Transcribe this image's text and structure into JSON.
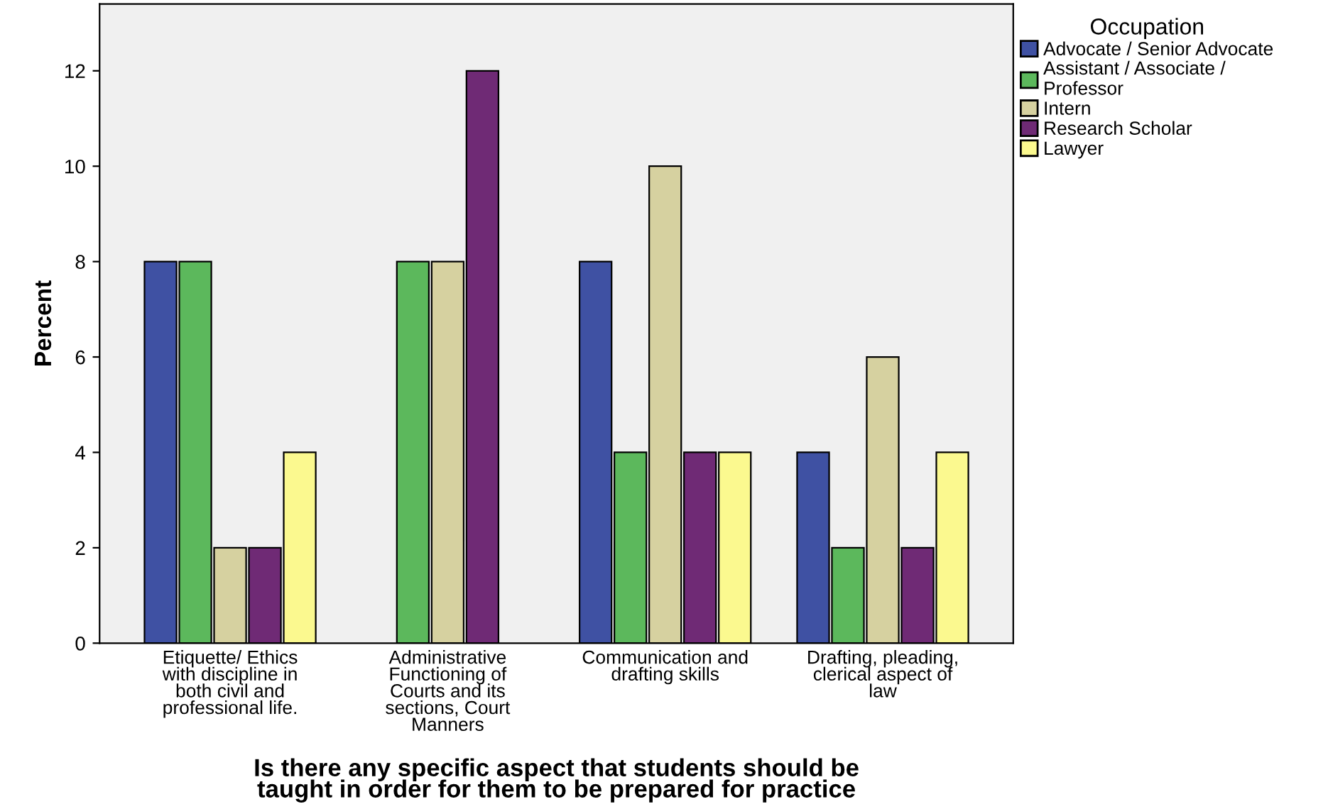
{
  "chart_data": {
    "type": "bar",
    "xlabel": "Is there any specific aspect that students should be\ntaught in order for them to be prepared for practice",
    "ylabel": "Percent",
    "legend_title": "Occupation",
    "categories": [
      "Etiquette/ Ethics\nwith discipline in\nboth civil and\nprofessional life.",
      "Administrative\nFunctioning of\nCourts and its\nsections, Court\nManners",
      "Communication and\ndrafting skills",
      "Drafting, pleading,\nclerical aspect of\nlaw"
    ],
    "series": [
      {
        "name": "Advocate / Senior Advocate",
        "color": "#3f51a3",
        "values": [
          8,
          null,
          8,
          4
        ]
      },
      {
        "name": "Assistant / Associate /\nProfessor",
        "color": "#5cb85c",
        "values": [
          8,
          8,
          4,
          2
        ]
      },
      {
        "name": "Intern",
        "color": "#d6d1a0",
        "values": [
          2,
          8,
          10,
          6
        ]
      },
      {
        "name": "Research Scholar",
        "color": "#6f2a75",
        "values": [
          2,
          12,
          4,
          2
        ]
      },
      {
        "name": "Lawyer",
        "color": "#fbf98f",
        "values": [
          4,
          null,
          4,
          4
        ]
      }
    ],
    "ylim": [
      0,
      13.4
    ],
    "yticks": [
      0,
      2,
      4,
      6,
      8,
      10,
      12
    ],
    "grid": false,
    "legend": "top right"
  }
}
